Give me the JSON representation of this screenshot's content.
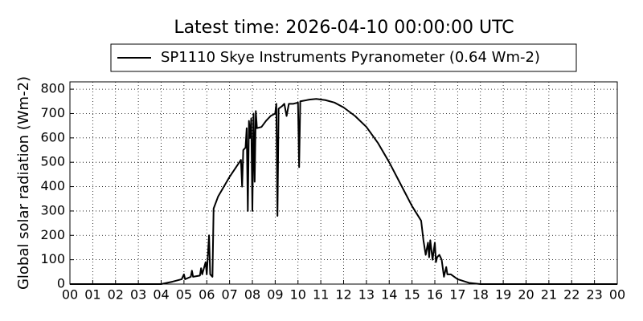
{
  "chart_data": {
    "type": "line",
    "title": "Latest time: 2026-04-10 00:00:00 UTC",
    "y_label": "Global solar radiation (Wm-2)",
    "legend_position": "top",
    "grid": true,
    "xlim": [
      0,
      24
    ],
    "xticks": [
      {
        "value": 0,
        "label": "00"
      },
      {
        "value": 1,
        "label": "01"
      },
      {
        "value": 2,
        "label": "02"
      },
      {
        "value": 3,
        "label": "03"
      },
      {
        "value": 4,
        "label": "04"
      },
      {
        "value": 5,
        "label": "05"
      },
      {
        "value": 6,
        "label": "06"
      },
      {
        "value": 7,
        "label": "07"
      },
      {
        "value": 8,
        "label": "08"
      },
      {
        "value": 9,
        "label": "09"
      },
      10,
      11,
      12,
      13,
      14,
      15,
      16,
      17,
      18,
      19,
      20,
      21,
      22,
      23,
      {
        "value": 24,
        "label": "00"
      }
    ],
    "ylim": [
      0,
      830
    ],
    "yticks": [
      0,
      100,
      200,
      300,
      400,
      500,
      600,
      700,
      800
    ],
    "x": [
      0,
      4,
      4.5,
      4.9,
      5.0,
      5.05,
      5.3,
      5.35,
      5.4,
      5.7,
      5.75,
      5.8,
      5.95,
      6.0,
      6.1,
      6.15,
      6.25,
      6.3,
      6.5,
      7.0,
      7.5,
      7.55,
      7.6,
      7.7,
      7.75,
      7.8,
      7.85,
      7.9,
      7.95,
      8.0,
      8.05,
      8.1,
      8.15,
      8.2,
      8.4,
      8.6,
      8.8,
      9.0,
      9.05,
      9.1,
      9.15,
      9.3,
      9.4,
      9.5,
      9.6,
      9.8,
      10.0,
      10.05,
      10.1,
      10.5,
      10.8,
      11.2,
      11.6,
      12,
      12.5,
      13,
      13.5,
      14,
      14.5,
      15,
      15.4,
      15.5,
      15.6,
      15.7,
      15.75,
      15.8,
      15.9,
      16.0,
      16.05,
      16.1,
      16.2,
      16.3,
      16.4,
      16.5,
      16.55,
      16.7,
      17,
      17.5,
      18,
      24
    ],
    "series": [
      {
        "name": "SP1110 Skye Instruments Pyranometer (0.64 Wm-2)",
        "color": "#000000",
        "values": [
          0,
          0,
          10,
          20,
          40,
          20,
          30,
          55,
          30,
          35,
          65,
          40,
          90,
          40,
          200,
          40,
          30,
          310,
          360,
          440,
          510,
          400,
          550,
          560,
          640,
          300,
          670,
          600,
          680,
          300,
          700,
          420,
          710,
          640,
          645,
          670,
          690,
          700,
          740,
          280,
          720,
          730,
          740,
          690,
          740,
          740,
          745,
          480,
          750,
          757,
          760,
          755,
          745,
          725,
          690,
          645,
          580,
          500,
          410,
          320,
          260,
          180,
          120,
          170,
          110,
          180,
          100,
          170,
          90,
          110,
          120,
          100,
          30,
          70,
          40,
          40,
          20,
          5,
          0,
          0
        ]
      }
    ]
  }
}
